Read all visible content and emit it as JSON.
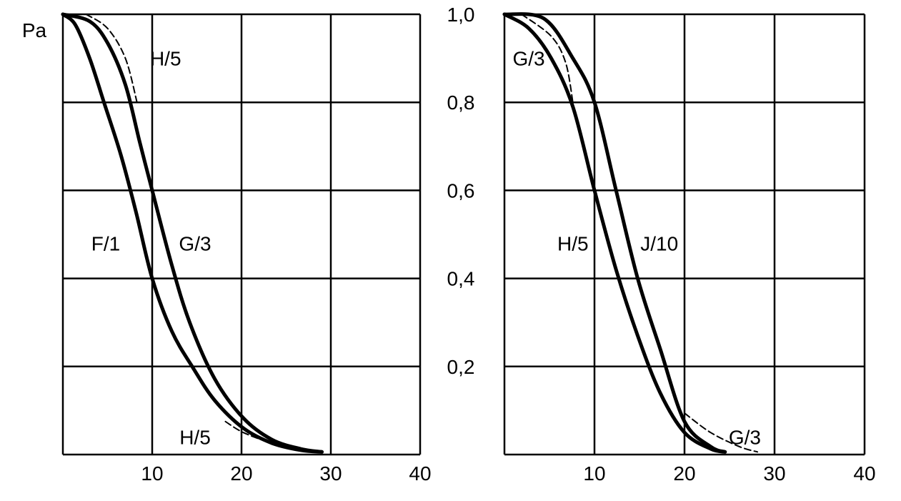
{
  "chart_data": [
    {
      "type": "line",
      "panel": "left",
      "ylabel": "Pa",
      "xlim": [
        0,
        40
      ],
      "ylim": [
        0,
        1.0
      ],
      "grid": true,
      "x_ticks": [
        "10",
        "20",
        "30",
        "40"
      ],
      "x_tick_values": [
        10,
        20,
        30,
        40
      ],
      "series": [
        {
          "name": "F/1",
          "style": "solid",
          "points": [
            [
              0,
              1
            ],
            [
              1.4,
              0.976
            ],
            [
              3,
              0.9
            ],
            [
              4.6,
              0.8
            ],
            [
              6.5,
              0.68
            ],
            [
              8.2,
              0.55
            ],
            [
              10,
              0.4
            ],
            [
              12.2,
              0.28
            ],
            [
              14.6,
              0.196
            ],
            [
              17,
              0.123
            ],
            [
              20.2,
              0.06
            ],
            [
              23.4,
              0.026
            ],
            [
              26.6,
              0.01
            ],
            [
              29,
              0.006
            ]
          ]
        },
        {
          "name": "G/3",
          "style": "solid",
          "points": [
            [
              0,
              1
            ],
            [
              3,
              0.984
            ],
            [
              5,
              0.935
            ],
            [
              7,
              0.84
            ],
            [
              8.6,
              0.71
            ],
            [
              10,
              0.6
            ],
            [
              12.2,
              0.43
            ],
            [
              14.2,
              0.3
            ],
            [
              17,
              0.172
            ],
            [
              20.2,
              0.083
            ],
            [
              23.4,
              0.034
            ],
            [
              26.6,
              0.013
            ],
            [
              29,
              0.006
            ]
          ]
        },
        {
          "name": "H/5",
          "style": "dashed",
          "points": [
            [
              2.6,
              1
            ],
            [
              5,
              0.968
            ],
            [
              7,
              0.9
            ],
            [
              8.3,
              0.8
            ]
          ]
        },
        {
          "name": "H/5",
          "style": "dashed",
          "points": [
            [
              18.2,
              0.075
            ],
            [
              20.2,
              0.05
            ],
            [
              23.4,
              0.026
            ],
            [
              26.6,
              0.01
            ]
          ]
        }
      ],
      "annotations": [
        {
          "text": "H/5",
          "x": 11.5,
          "y": 0.9
        },
        {
          "text": "F/1",
          "x": 4.8,
          "y": 0.48
        },
        {
          "text": "G/3",
          "x": 14.8,
          "y": 0.48
        },
        {
          "text": "H/5",
          "x": 14.8,
          "y": 0.04
        }
      ]
    },
    {
      "type": "line",
      "panel": "right",
      "ylabel": "",
      "xlim": [
        0,
        40
      ],
      "ylim": [
        0,
        1.0
      ],
      "grid": true,
      "x_ticks": [
        "10",
        "20",
        "30",
        "40"
      ],
      "x_tick_values": [
        10,
        20,
        30,
        40
      ],
      "y_ticks": [
        "1,0",
        "0,8",
        "0,6",
        "0,4",
        "0,2"
      ],
      "y_tick_values": [
        1.0,
        0.8,
        0.6,
        0.4,
        0.2
      ],
      "series": [
        {
          "name": "H/5",
          "style": "solid",
          "points": [
            [
              0,
              1
            ],
            [
              2.7,
              0.968
            ],
            [
              5.2,
              0.9
            ],
            [
              7.6,
              0.79
            ],
            [
              10,
              0.6
            ],
            [
              12.4,
              0.42
            ],
            [
              14.8,
              0.27
            ],
            [
              17.3,
              0.14
            ],
            [
              20,
              0.05
            ],
            [
              22.9,
              0.013
            ],
            [
              24.5,
              0.006
            ]
          ]
        },
        {
          "name": "J/10",
          "style": "solid",
          "points": [
            [
              0,
              1
            ],
            [
              4.4,
              0.99
            ],
            [
              7.6,
              0.9
            ],
            [
              10,
              0.8
            ],
            [
              12.4,
              0.6
            ],
            [
              14.8,
              0.4
            ],
            [
              17.3,
              0.24
            ],
            [
              20,
              0.075
            ],
            [
              22.9,
              0.018
            ],
            [
              24.5,
              0.006
            ]
          ]
        },
        {
          "name": "G/3",
          "style": "dashed",
          "points": [
            [
              1.9,
              1
            ],
            [
              5.2,
              0.95
            ],
            [
              6.8,
              0.89
            ],
            [
              7.6,
              0.8
            ]
          ]
        },
        {
          "name": "G/3",
          "style": "dashed",
          "points": [
            [
              20,
              0.094
            ],
            [
              22.9,
              0.05
            ],
            [
              26.1,
              0.018
            ],
            [
              28.1,
              0.006
            ]
          ]
        }
      ],
      "annotations": [
        {
          "text": "G/3",
          "x": 2.7,
          "y": 0.9
        },
        {
          "text": "H/5",
          "x": 7.6,
          "y": 0.48
        },
        {
          "text": "J/10",
          "x": 17.2,
          "y": 0.48
        },
        {
          "text": "G/3",
          "x": 26.7,
          "y": 0.04
        }
      ]
    }
  ]
}
